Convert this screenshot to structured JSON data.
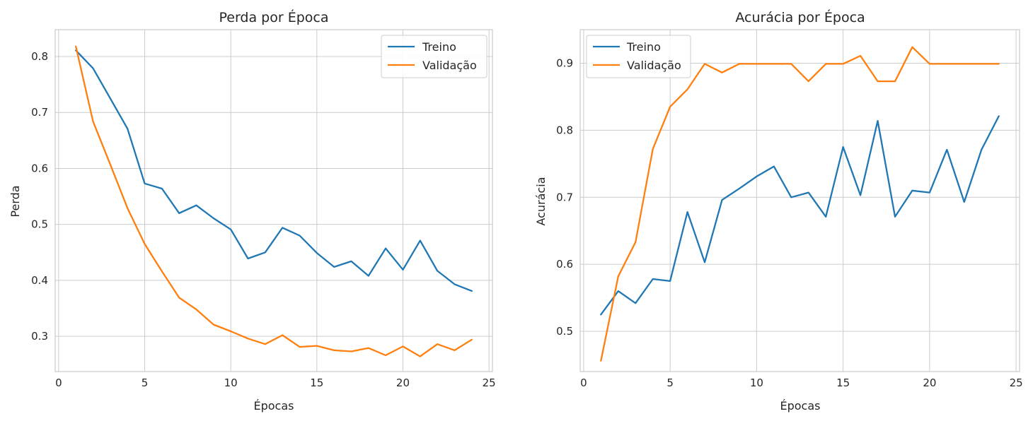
{
  "chart_data": [
    {
      "type": "line",
      "title": "Perda por Época",
      "xlabel": "Épocas",
      "ylabel": "Perda",
      "xlim": [
        -0.2,
        25.2
      ],
      "ylim": [
        0.237,
        0.848
      ],
      "xticks": [
        0,
        5,
        10,
        15,
        20,
        25
      ],
      "yticks": [
        0.3,
        0.4,
        0.5,
        0.6,
        0.7,
        0.8
      ],
      "ytick_labels": [
        "0.3",
        "0.4",
        "0.5",
        "0.6",
        "0.7",
        "0.8"
      ],
      "grid": true,
      "legend": "top-right",
      "x": [
        1,
        2,
        3,
        4,
        5,
        6,
        7,
        8,
        9,
        10,
        11,
        12,
        13,
        14,
        15,
        16,
        17,
        18,
        19,
        20,
        21,
        22,
        23,
        24
      ],
      "series": [
        {
          "name": "Treino",
          "color": "#1f77b4",
          "values": [
            0.811,
            0.779,
            0.725,
            0.671,
            0.573,
            0.564,
            0.52,
            0.534,
            0.511,
            0.491,
            0.439,
            0.45,
            0.494,
            0.48,
            0.449,
            0.424,
            0.434,
            0.408,
            0.457,
            0.419,
            0.471,
            0.417,
            0.393,
            0.381
          ]
        },
        {
          "name": "Validação",
          "color": "#ff7f0e",
          "values": [
            0.818,
            0.684,
            0.607,
            0.529,
            0.465,
            0.416,
            0.369,
            0.348,
            0.321,
            0.309,
            0.296,
            0.286,
            0.302,
            0.281,
            0.283,
            0.275,
            0.273,
            0.279,
            0.266,
            0.282,
            0.264,
            0.286,
            0.275,
            0.294
          ]
        }
      ]
    },
    {
      "type": "line",
      "title": "Acurácia por Época",
      "xlabel": "Épocas",
      "ylabel": "Acurácia",
      "xlim": [
        -0.2,
        25.2
      ],
      "ylim": [
        0.44,
        0.95
      ],
      "xticks": [
        0,
        5,
        10,
        15,
        20,
        25
      ],
      "yticks": [
        0.5,
        0.6,
        0.7,
        0.8,
        0.9
      ],
      "ytick_labels": [
        "0.5",
        "0.6",
        "0.7",
        "0.8",
        "0.9"
      ],
      "grid": true,
      "legend": "top-left",
      "x": [
        1,
        2,
        3,
        4,
        5,
        6,
        7,
        8,
        9,
        10,
        11,
        12,
        13,
        14,
        15,
        16,
        17,
        18,
        19,
        20,
        21,
        22,
        23,
        24
      ],
      "series": [
        {
          "name": "Treino",
          "color": "#1f77b4",
          "values": [
            0.525,
            0.56,
            0.542,
            0.578,
            0.575,
            0.678,
            0.603,
            0.696,
            0.713,
            0.731,
            0.746,
            0.7,
            0.707,
            0.671,
            0.775,
            0.703,
            0.814,
            0.671,
            0.71,
            0.707,
            0.771,
            0.693,
            0.771,
            0.821
          ]
        },
        {
          "name": "Validação",
          "color": "#ff7f0e",
          "values": [
            0.456,
            0.582,
            0.633,
            0.772,
            0.835,
            0.861,
            0.899,
            0.886,
            0.899,
            0.899,
            0.899,
            0.899,
            0.873,
            0.899,
            0.899,
            0.911,
            0.873,
            0.873,
            0.924,
            0.899,
            0.899,
            0.899,
            0.899,
            0.899
          ]
        }
      ]
    }
  ]
}
